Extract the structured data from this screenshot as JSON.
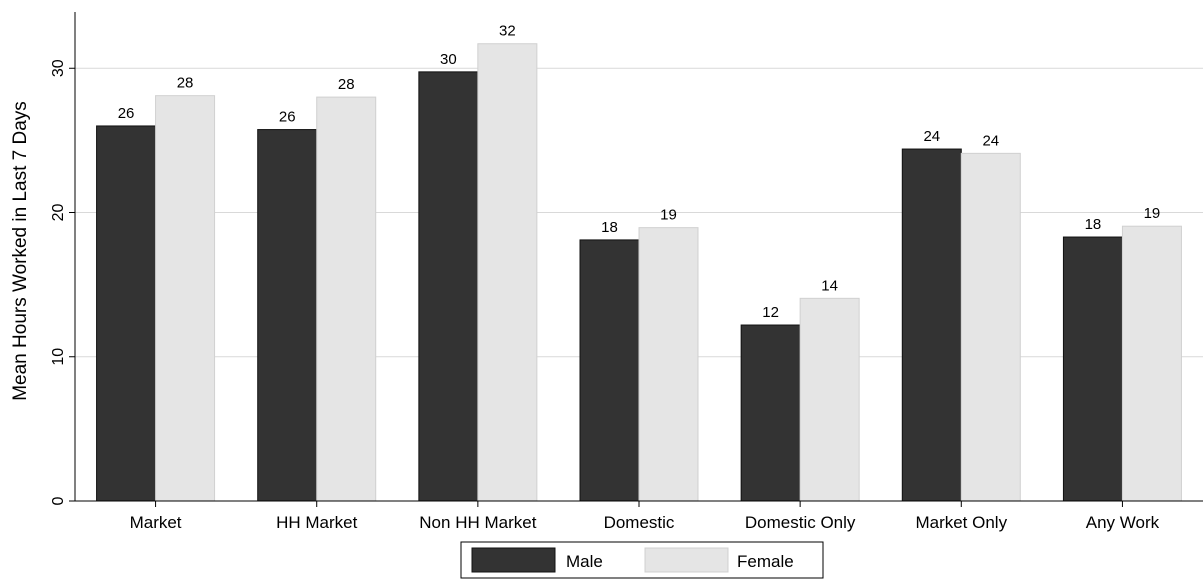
{
  "chart_data": {
    "type": "bar",
    "ylabel": "Mean Hours Worked in Last 7 Days",
    "xlabel": "",
    "title": "",
    "ylim": [
      0,
      33.9
    ],
    "yticks": [
      0,
      10,
      20,
      30
    ],
    "grid": true,
    "legend_position": "bottom-center",
    "categories": [
      "Market",
      "HH Market",
      "Non HH Market",
      "Domestic",
      "Domestic Only",
      "Market Only",
      "Any Work"
    ],
    "series": [
      {
        "name": "Male",
        "color": "#333333",
        "values": [
          26.0,
          25.75,
          29.75,
          18.1,
          12.2,
          24.4,
          18.3
        ],
        "labels": [
          "26",
          "26",
          "30",
          "18",
          "12",
          "24",
          "18"
        ]
      },
      {
        "name": "Female",
        "color": "#e5e5e5",
        "values": [
          28.1,
          28.0,
          31.7,
          18.95,
          14.05,
          24.1,
          19.05
        ],
        "labels": [
          "28",
          "28",
          "32",
          "19",
          "14",
          "24",
          "19"
        ]
      }
    ]
  }
}
